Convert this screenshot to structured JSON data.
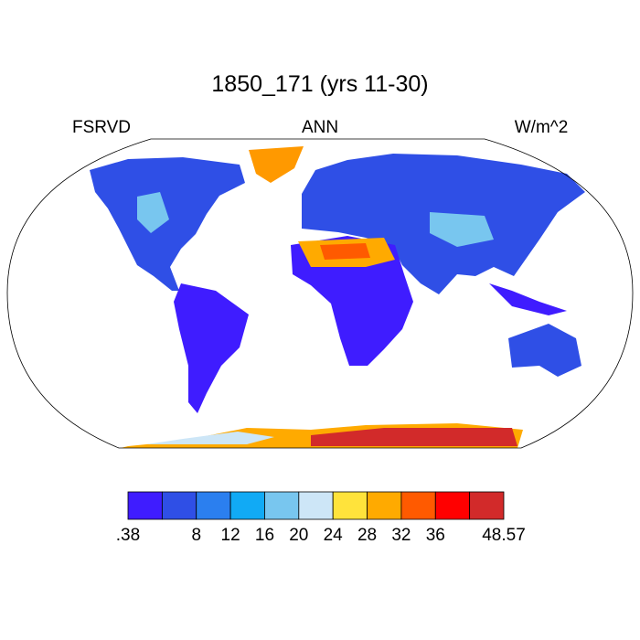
{
  "header": {
    "title": "1850_171 (yrs 11-30)",
    "left": "FSRVD",
    "center": "ANN",
    "right": "W/m^2"
  },
  "colorbar": {
    "colors": [
      "#3f1cff",
      "#2f4fe6",
      "#2b7fef",
      "#11aaf5",
      "#78c6ef",
      "#cde6f7",
      "#ffe33b",
      "#ffaa00",
      "#ff5a00",
      "#ff0000",
      "#d22a2a"
    ],
    "ticks": [
      {
        "value": 0.38,
        "label": ".38"
      },
      null,
      8,
      12,
      16,
      20,
      24,
      28,
      32,
      36,
      null,
      48.57
    ]
  }
}
